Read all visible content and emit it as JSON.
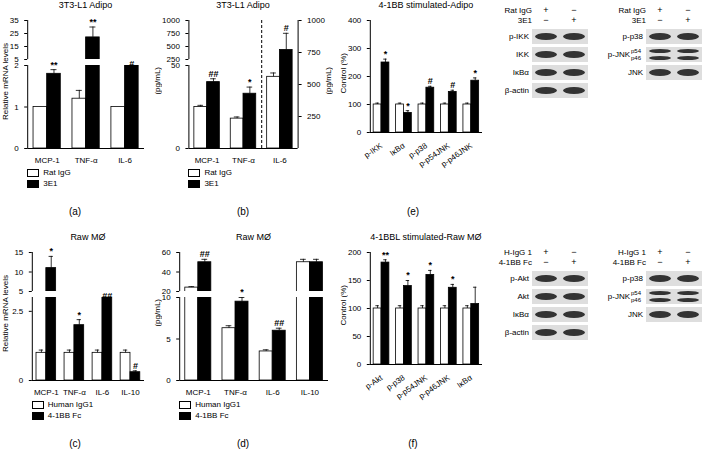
{
  "chart_data": [
    {
      "type": "bar",
      "title": "3T3-L1 Adipo",
      "caption": "(a)",
      "y_label": "Relative mRNA levels",
      "categories": [
        "MCP-1",
        "TNF-α",
        "IL-6"
      ],
      "series": [
        {
          "name": "Rat IgG",
          "color": "#ffffff",
          "values": [
            1.0,
            1.2,
            1.0
          ],
          "errors": [
            null,
            0.2,
            null
          ]
        },
        {
          "name": "3E1",
          "color": "#000000",
          "values": [
            1.8,
            22,
            2.1
          ],
          "errors": [
            0.1,
            8,
            0.1
          ],
          "annotations": [
            "**",
            "**",
            "#"
          ]
        }
      ],
      "ylim": [
        [
          0,
          2
        ],
        [
          5,
          35
        ]
      ],
      "yticks": [
        [
          0,
          1,
          2
        ],
        [
          5,
          15,
          25,
          35
        ]
      ],
      "legend": "bottom"
    },
    {
      "type": "bar",
      "title": "3T3-L1 Adipo",
      "caption": "(b)",
      "y_label": "(pg/mL)",
      "y2_label": "(pg/mL)",
      "categories": [
        "MCP-1",
        "TNF-α",
        "IL-6"
      ],
      "series": [
        {
          "name": "Rat IgG",
          "color": "#ffffff",
          "values": [
            25,
            18,
            null
          ],
          "errors": [
            1,
            1,
            null
          ]
        },
        {
          "name": "3E1",
          "color": "#000000",
          "values": [
            40,
            33,
            null
          ],
          "errors": [
            2,
            4,
            null
          ],
          "annotations": [
            "##",
            "*",
            null
          ]
        },
        {
          "name": "Rat IgG",
          "color": "#ffffff",
          "axis": "y2",
          "values": [
            null,
            null,
            560
          ],
          "errors": [
            null,
            null,
            30
          ]
        },
        {
          "name": "3E1",
          "color": "#000000",
          "axis": "y2",
          "values": [
            null,
            null,
            770
          ],
          "errors": [
            null,
            null,
            130
          ],
          "annotations": [
            null,
            null,
            "#"
          ]
        }
      ],
      "ylim": [
        [
          0,
          50
        ],
        [
          250,
          1000
        ]
      ],
      "yticks": [
        [
          0,
          50
        ],
        [
          250,
          500,
          750,
          1000
        ]
      ],
      "y2lim": [
        0,
        1000
      ],
      "y2ticks": [
        250,
        500,
        750,
        1000
      ],
      "legend": "bottom"
    },
    {
      "type": "bar",
      "title": "Raw MØ",
      "caption": "(c)",
      "y_label": "Relative mRNA levels",
      "categories": [
        "MCP-1",
        "TNF-α",
        "IL-6",
        "IL-10"
      ],
      "series": [
        {
          "name": "Human IgG1",
          "color": "#ffffff",
          "values": [
            1.0,
            1.0,
            1.0,
            1.0
          ],
          "errors": [
            0.1,
            0.1,
            0.1,
            0.1
          ]
        },
        {
          "name": "4-1BB Fc",
          "color": "#000000",
          "values": [
            11,
            2.0,
            3.0,
            0.3
          ],
          "errors": [
            3,
            0.2,
            0.1,
            0.05
          ],
          "annotations": [
            "*",
            "*",
            "##",
            "#"
          ]
        }
      ],
      "ylim": [
        [
          0,
          3
        ],
        [
          5,
          15
        ]
      ],
      "yticks": [
        [
          0,
          2.5
        ],
        [
          5,
          10,
          15
        ]
      ],
      "legend": "bottom"
    },
    {
      "type": "bar",
      "title": "Raw MØ",
      "caption": "(d)",
      "y_label": "(pg/mL)",
      "categories": [
        "MCP-1",
        "TNF-α",
        "IL-6",
        "IL-10"
      ],
      "series": [
        {
          "name": "Human IgG1",
          "color": "#ffffff",
          "values": [
            24,
            6.3,
            3.5,
            50
          ],
          "errors": [
            1,
            0.3,
            0.2,
            3
          ]
        },
        {
          "name": "4-1BB Fc",
          "color": "#000000",
          "values": [
            50,
            9.5,
            6.0,
            50
          ],
          "errors": [
            3,
            0.5,
            0.3,
            3
          ],
          "annotations": [
            "##",
            "*",
            "##",
            null
          ]
        }
      ],
      "ylim": [
        [
          0,
          10
        ],
        [
          20,
          60
        ]
      ],
      "yticks": [
        [
          0,
          5,
          10
        ],
        [
          20,
          40,
          60
        ]
      ],
      "legend": "bottom"
    },
    {
      "type": "bar",
      "title": "4-1BB stimulated-Adipo",
      "caption": "(e)",
      "y_label": "Control (%)",
      "categories": [
        "p-IKK",
        "IκBα",
        "p-p38",
        "p-p54JNK",
        "p-p46JNK"
      ],
      "series": [
        {
          "color": "#ffffff",
          "values": [
            100,
            100,
            100,
            100,
            100
          ],
          "errors": [
            5,
            5,
            5,
            5,
            5
          ]
        },
        {
          "color": "#000000",
          "values": [
            250,
            70,
            160,
            145,
            185
          ],
          "errors": [
            12,
            8,
            5,
            6,
            10
          ],
          "annotations": [
            "*",
            "*",
            "#",
            "#",
            "*"
          ]
        }
      ],
      "ylim": [
        0,
        400
      ],
      "yticks": [
        0,
        100,
        200,
        300,
        400
      ]
    },
    {
      "type": "bar",
      "title": "4-1BBL stimulated-Raw MØ",
      "caption": "(f)",
      "y_label": "Control (%)",
      "categories": [
        "p-Akt",
        "p-p38",
        "p-p54JNK",
        "p-p46JNK",
        "IκBα"
      ],
      "series": [
        {
          "color": "#ffffff",
          "values": [
            100,
            100,
            100,
            100,
            100
          ],
          "errors": [
            5,
            5,
            5,
            5,
            5
          ]
        },
        {
          "color": "#000000",
          "values": [
            182,
            140,
            160,
            137,
            108
          ],
          "errors": [
            5,
            10,
            8,
            6,
            30
          ],
          "annotations": [
            "**",
            "*",
            "*",
            "*",
            null
          ]
        }
      ],
      "ylim": [
        0,
        200
      ],
      "yticks": [
        0,
        50,
        100,
        150,
        200
      ]
    }
  ],
  "blots": [
    {
      "header": [
        {
          "label": "Rat IgG",
          "lanes": [
            "+",
            "−"
          ]
        },
        {
          "label": "3E1",
          "lanes": [
            "−",
            "+"
          ]
        }
      ],
      "rows": [
        {
          "label": "p-IKK"
        },
        {
          "label": "IKK"
        },
        {
          "label": "IκBα"
        },
        {
          "label": "β-actin"
        }
      ]
    },
    {
      "header": [
        {
          "label": "Rat IgG",
          "lanes": [
            "+",
            "−"
          ]
        },
        {
          "label": "3E1",
          "lanes": [
            "−",
            "+"
          ]
        }
      ],
      "rows": [
        {
          "label": "p-p38"
        },
        {
          "label": "p-JNK",
          "bands": [
            "p54",
            "p46"
          ]
        },
        {
          "label": "JNK"
        }
      ]
    },
    {
      "header": [
        {
          "label": "H-IgG 1",
          "lanes": [
            "+",
            "−"
          ]
        },
        {
          "label": "4-1BB Fc",
          "lanes": [
            "−",
            "+"
          ]
        }
      ],
      "rows": [
        {
          "label": "p-Akt"
        },
        {
          "label": "Akt"
        },
        {
          "label": "IκBα"
        },
        {
          "label": "β-actin"
        }
      ]
    },
    {
      "header": [
        {
          "label": "H-IgG 1",
          "lanes": [
            "+",
            "−"
          ]
        },
        {
          "label": "4-1BB Fc",
          "lanes": [
            "−",
            "+"
          ]
        }
      ],
      "rows": [
        {
          "label": "p-p38"
        },
        {
          "label": "p-JNK",
          "bands": [
            "p54",
            "p46"
          ]
        },
        {
          "label": "JNK"
        }
      ]
    }
  ]
}
